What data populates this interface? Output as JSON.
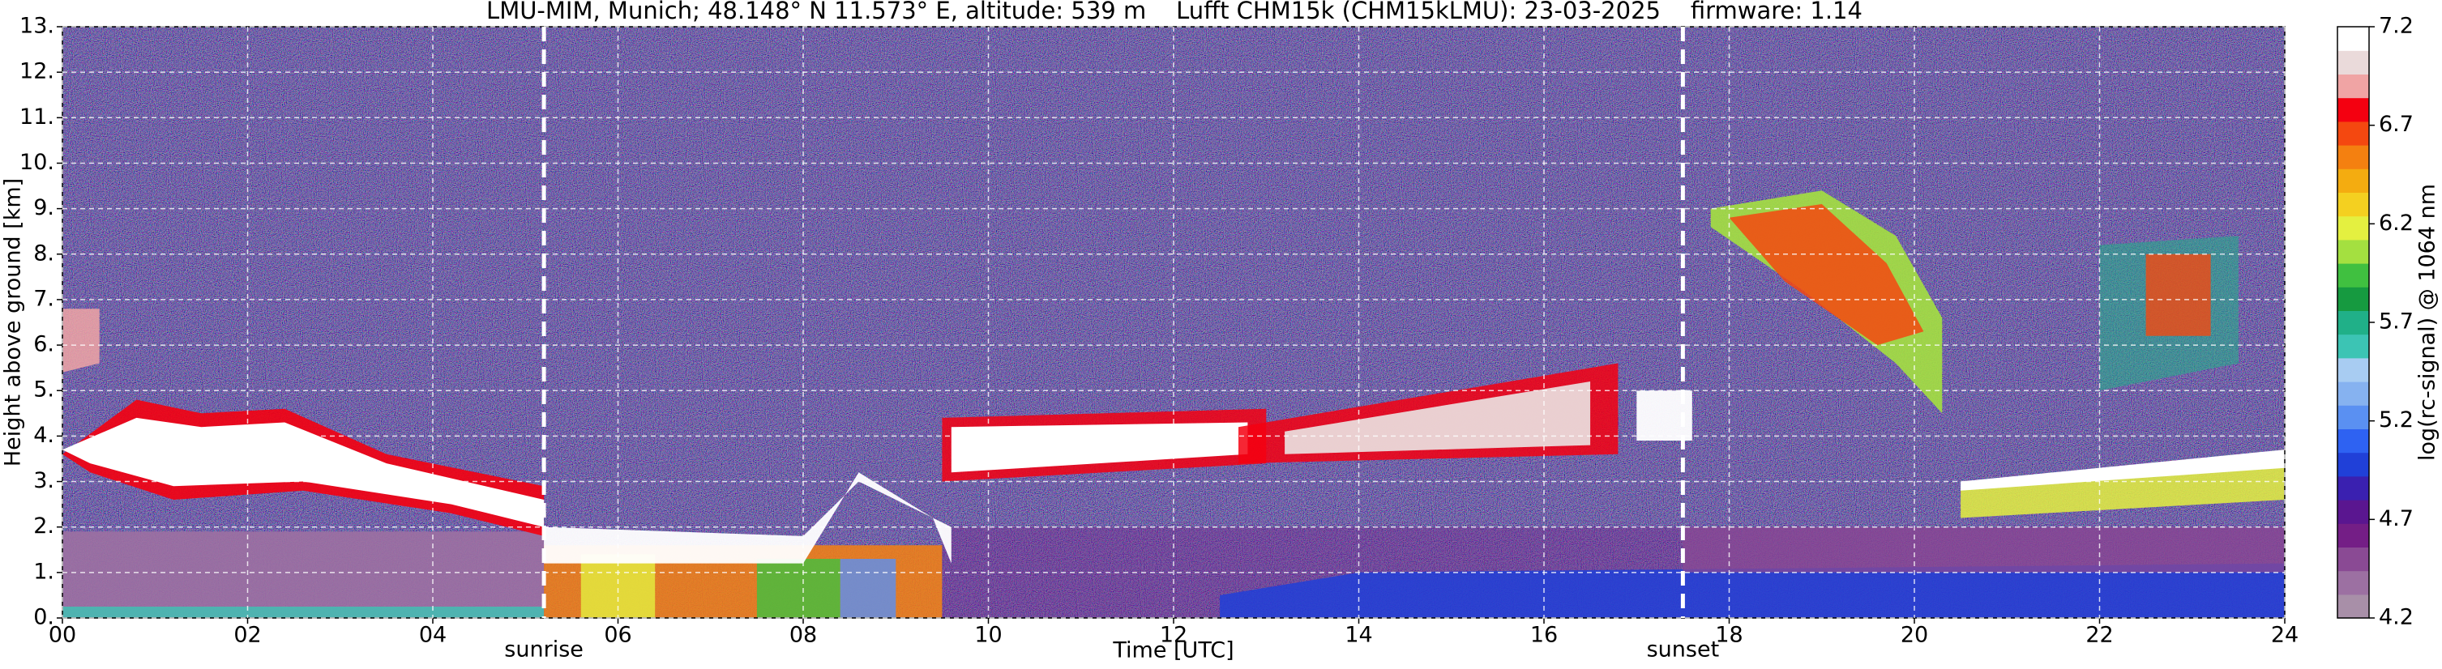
{
  "chart_data": {
    "type": "heatmap",
    "title": "LMU-MIM, Munich; 48.148° N 11.573° E, altitude: 539 m    Lufft CHM15k (CHM15kLMU): 23-03-2025    firmware: 1.14",
    "xlabel": "Time [UTC]",
    "ylabel": "Height above ground [km]",
    "xlim": [
      0,
      24
    ],
    "xticks": [
      {
        "value": 0,
        "label": "00"
      },
      {
        "value": 2,
        "label": "02"
      },
      {
        "value": 4,
        "label": "04"
      },
      {
        "value": 6,
        "label": "06"
      },
      {
        "value": 8,
        "label": "08"
      },
      {
        "value": 10,
        "label": "10"
      },
      12,
      14,
      16,
      18,
      20,
      22,
      24
    ],
    "ylim": [
      0,
      13
    ],
    "yticks": [
      {
        "value": 0,
        "label": "0."
      },
      {
        "value": 1,
        "label": "1."
      },
      {
        "value": 2,
        "label": "2."
      },
      {
        "value": 3,
        "label": "3."
      },
      {
        "value": 4,
        "label": "4."
      },
      {
        "value": 5,
        "label": "5."
      },
      {
        "value": 6,
        "label": "6."
      },
      {
        "value": 7,
        "label": "7."
      },
      {
        "value": 8,
        "label": "8."
      },
      {
        "value": 9,
        "label": "9."
      },
      {
        "value": 10,
        "label": "10."
      },
      {
        "value": 11,
        "label": "11."
      },
      {
        "value": 12,
        "label": "12."
      },
      {
        "value": 13,
        "label": "13."
      }
    ],
    "grid": true,
    "colorbar": {
      "label": "log(rc-signal) @ 1064 nm",
      "lim": [
        4.2,
        7.2
      ],
      "ticks": [
        4.2,
        4.7,
        5.2,
        5.7,
        6.2,
        6.7,
        7.2
      ],
      "colormap": [
        "#a88fa8",
        "#9c70a2",
        "#8a4a94",
        "#741e86",
        "#5a1690",
        "#3a20b0",
        "#2040d8",
        "#2e62f2",
        "#5a90f2",
        "#86b2f0",
        "#a8ccf2",
        "#3cc4b4",
        "#20b088",
        "#169a40",
        "#40c040",
        "#a4e040",
        "#e4f040",
        "#f4d020",
        "#f4ac10",
        "#f48010",
        "#f44810",
        "#f40010",
        "#f0a4a4",
        "#eadada",
        "#ffffff"
      ]
    },
    "annotations": [
      {
        "x": 5.2,
        "text": "sunrise"
      },
      {
        "x": 17.5,
        "text": "sunset"
      }
    ]
  }
}
